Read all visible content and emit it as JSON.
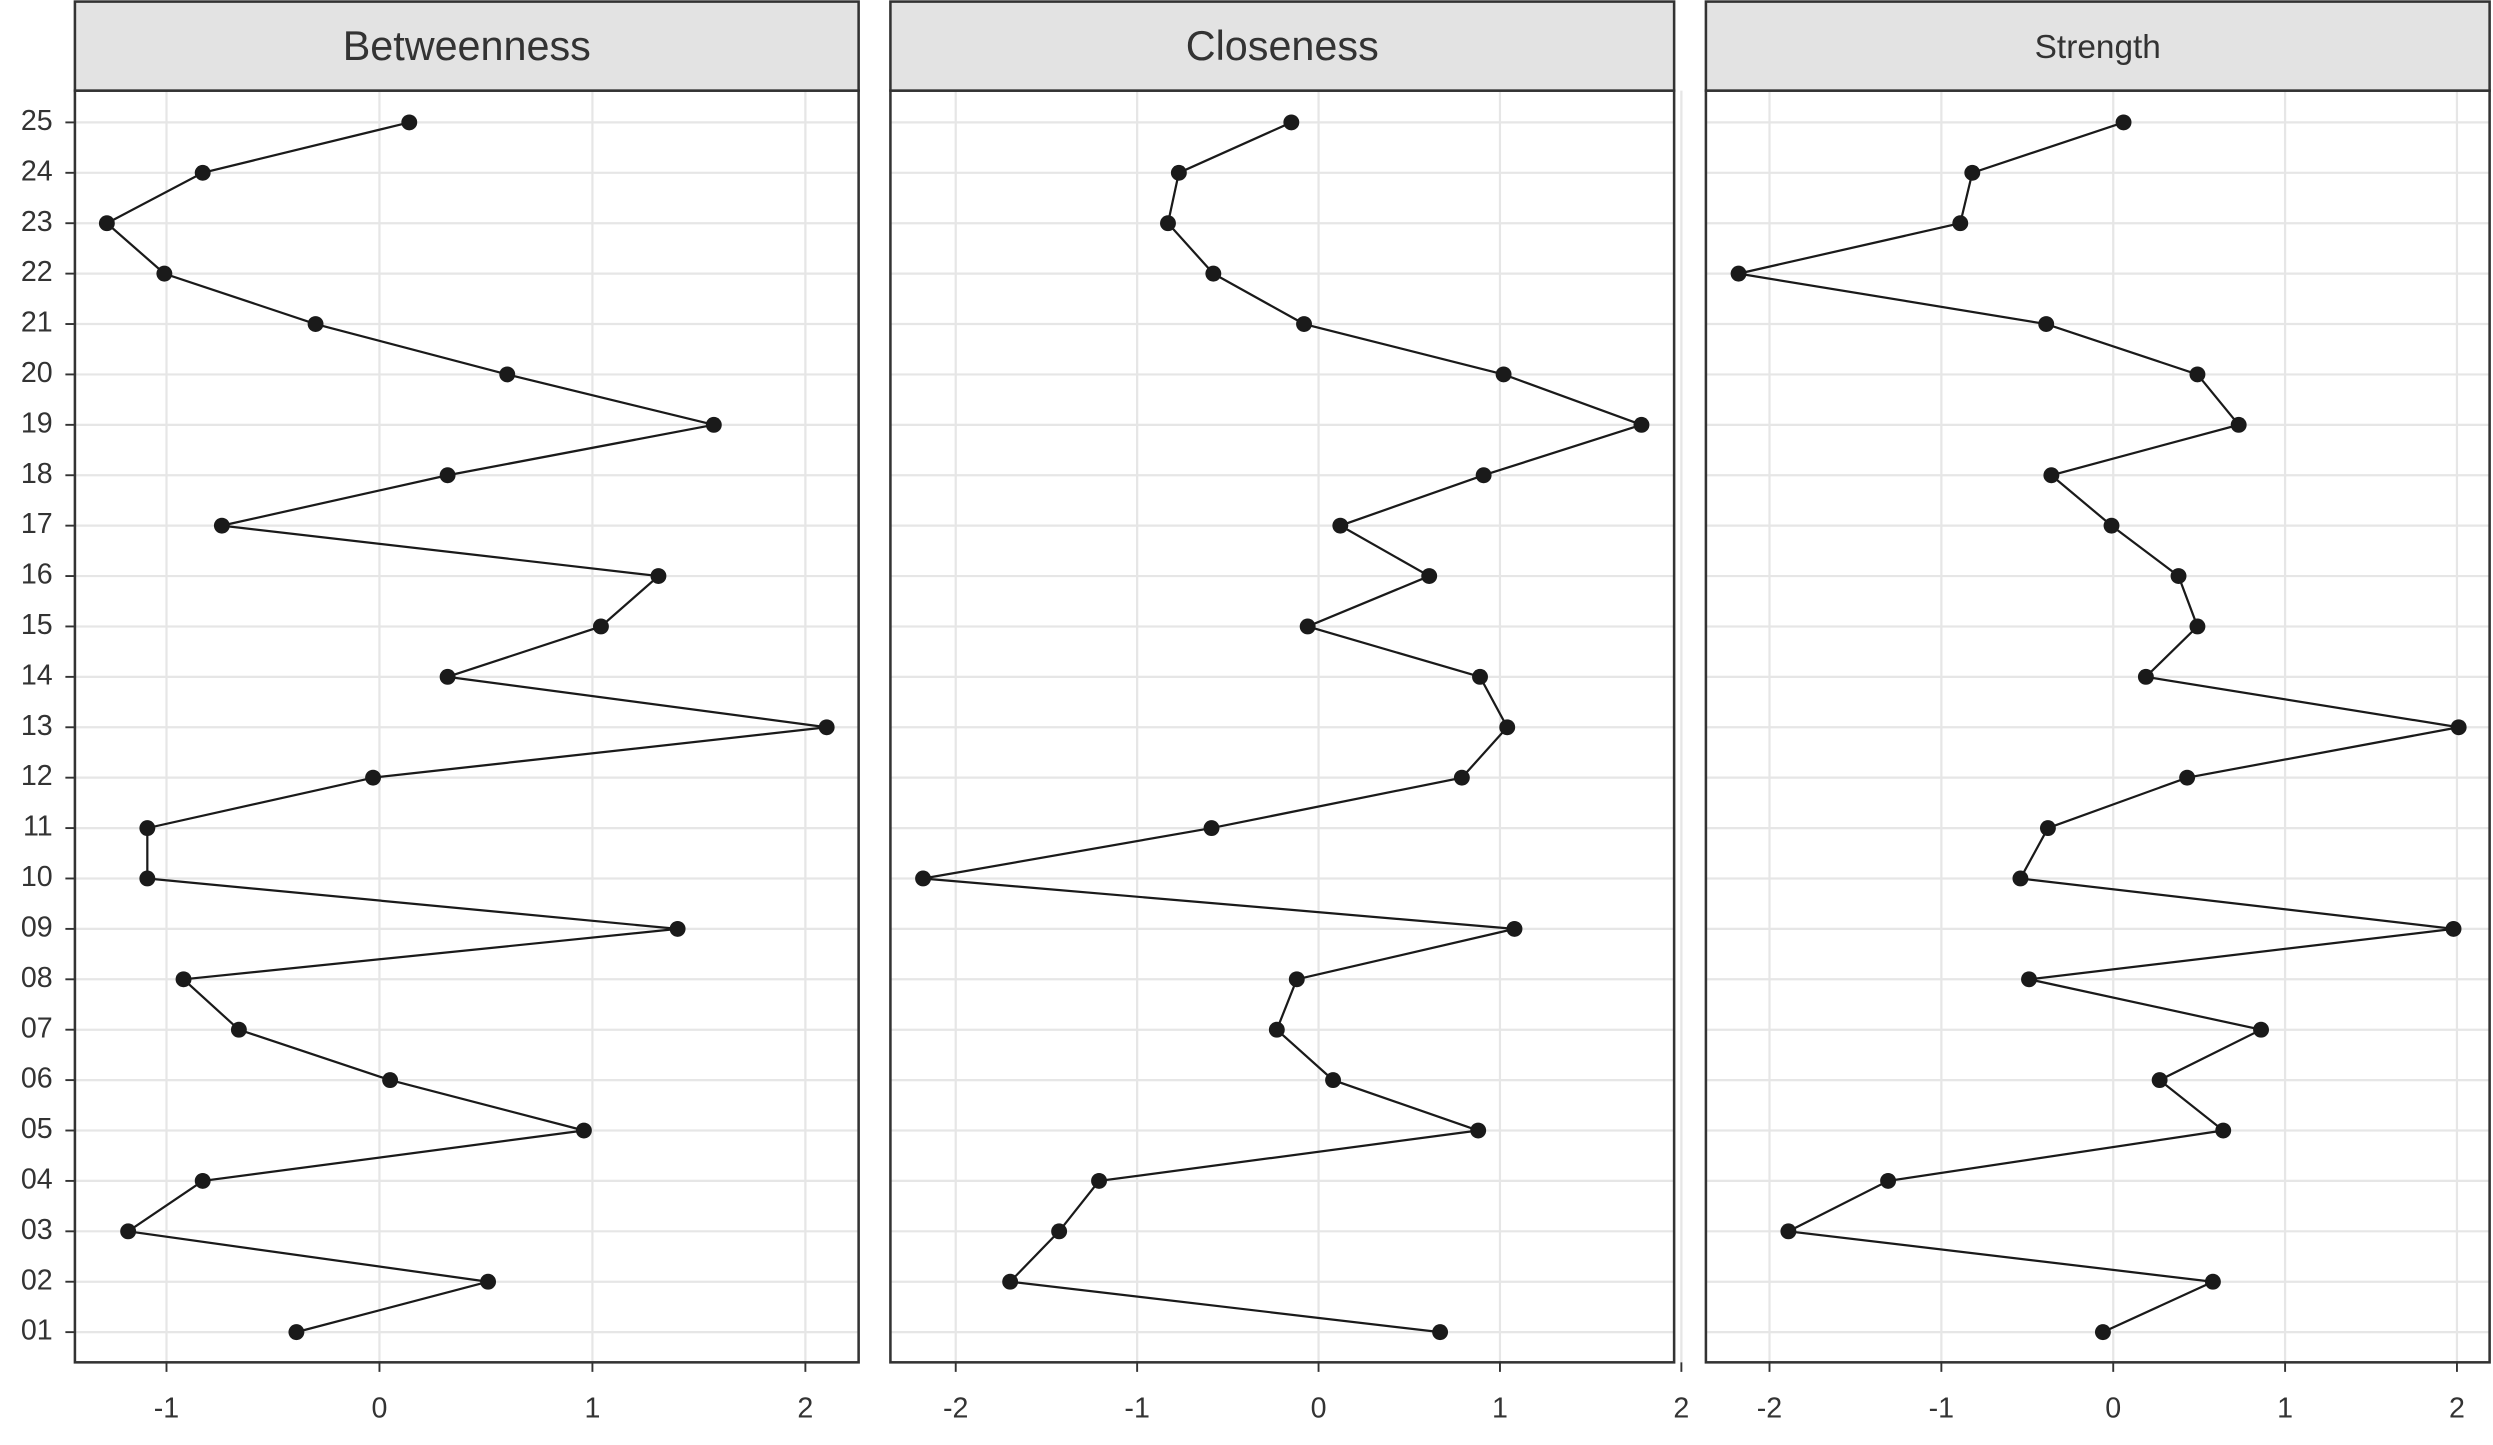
{
  "chart_data": [
    {
      "type": "line",
      "title": "Betweenness",
      "categories": [
        "01",
        "02",
        "03",
        "04",
        "05",
        "06",
        "07",
        "08",
        "09",
        "10",
        "11",
        "12",
        "13",
        "14",
        "15",
        "16",
        "17",
        "18",
        "19",
        "20",
        "21",
        "22",
        "23",
        "24",
        "25"
      ],
      "values": [
        -0.39,
        0.51,
        -1.18,
        -0.83,
        0.96,
        0.05,
        -0.66,
        -0.92,
        1.4,
        -1.09,
        -1.09,
        -0.03,
        2.1,
        0.32,
        1.04,
        1.31,
        -0.74,
        0.32,
        1.57,
        0.6,
        -0.3,
        -1.01,
        -1.28,
        -0.83,
        0.14
      ],
      "color": "#1a1a1a",
      "xlim": [
        -1.43,
        2.25
      ],
      "xticks": [
        -1,
        0,
        1,
        2
      ],
      "grid": true
    },
    {
      "type": "line",
      "title": "Closeness",
      "values": [
        0.67,
        -1.7,
        -1.43,
        -1.21,
        0.88,
        0.08,
        -0.23,
        -0.12,
        1.08,
        -2.18,
        -0.59,
        0.79,
        1.04,
        0.89,
        -0.06,
        0.61,
        0.12,
        0.91,
        1.78,
        1.02,
        -0.08,
        -0.58,
        -0.83,
        -0.77,
        -0.15
      ],
      "color": "#1a1a1a",
      "xlim": [
        -2.36,
        1.96
      ],
      "xticks": [
        -2,
        -1,
        0,
        1,
        2
      ],
      "grid": true
    },
    {
      "type": "line",
      "title": "Strength",
      "values": [
        -0.06,
        0.58,
        -1.89,
        -1.31,
        0.64,
        0.27,
        0.86,
        -0.49,
        1.98,
        -0.54,
        -0.38,
        0.43,
        2.01,
        0.19,
        0.49,
        0.38,
        -0.01,
        -0.36,
        0.73,
        0.49,
        -0.39,
        -2.18,
        -0.89,
        -0.82,
        0.06
      ],
      "color": "#1a1a1a",
      "xlim": [
        -2.37,
        2.19
      ],
      "xticks": [
        -2,
        -1,
        0,
        1,
        2
      ],
      "grid": true
    }
  ]
}
